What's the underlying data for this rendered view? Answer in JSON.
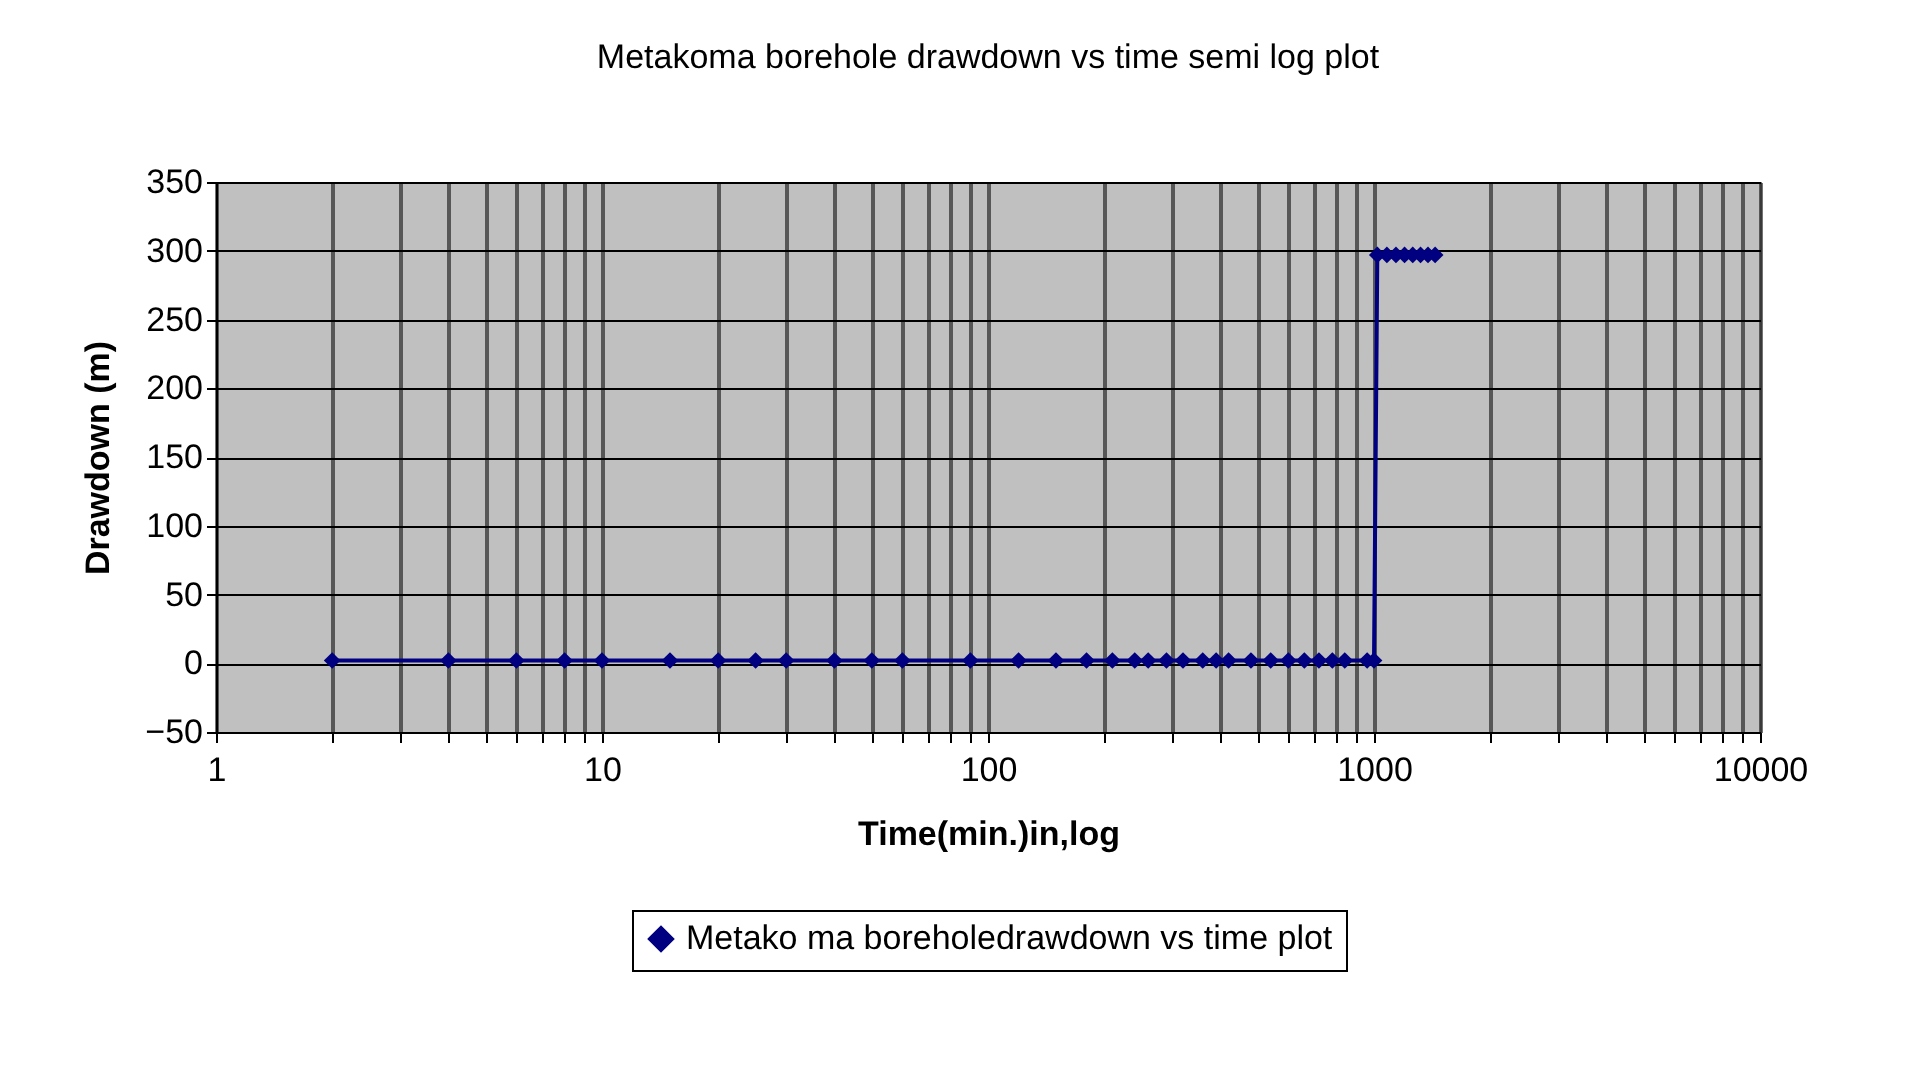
{
  "chart_data": {
    "type": "line",
    "title": "Metakoma borehole drawdown vs time semi log plot",
    "xlabel": "Time(min.)in,log",
    "ylabel": "Drawdown (m)",
    "x": [
      2,
      4,
      6,
      8,
      10,
      15,
      20,
      25,
      30,
      40,
      50,
      60,
      90,
      120,
      150,
      180,
      210,
      240,
      260,
      290,
      320,
      360,
      390,
      420,
      480,
      540,
      600,
      660,
      720,
      780,
      840,
      960,
      1000,
      1020,
      1080,
      1140,
      1200,
      1260,
      1320,
      1380,
      1440
    ],
    "series": [
      {
        "name": "Metako ma boreholedrawdown vs time plot",
        "color": "#000080",
        "values": [
          2,
          2,
          2,
          2,
          2,
          2,
          2,
          2,
          2,
          2,
          2,
          2,
          2,
          2,
          2,
          2,
          2,
          2,
          2,
          2,
          2,
          2,
          2,
          2,
          2,
          2,
          2,
          2,
          2,
          2,
          2,
          2,
          2,
          297,
          297,
          297,
          297,
          297,
          297,
          297,
          297
        ]
      }
    ],
    "xlim": [
      1,
      10000
    ],
    "xticks": [
      1,
      {
        "value": 2,
        "label": null
      },
      {
        "value": 3,
        "label": null
      },
      {
        "value": 4,
        "label": null
      },
      {
        "value": 5,
        "label": null
      },
      {
        "value": 6,
        "label": null
      },
      {
        "value": 7,
        "label": null
      },
      {
        "value": 8,
        "label": null
      },
      {
        "value": 9,
        "label": null
      },
      10,
      {
        "value": 20,
        "label": null
      },
      {
        "value": 30,
        "label": null
      },
      {
        "value": 40,
        "label": null
      },
      {
        "value": 50,
        "label": null
      },
      {
        "value": 60,
        "label": null
      },
      {
        "value": 70,
        "label": null
      },
      {
        "value": 80,
        "label": null
      },
      {
        "value": 90,
        "label": null
      },
      100,
      {
        "value": 200,
        "label": null
      },
      {
        "value": 300,
        "label": null
      },
      {
        "value": 400,
        "label": null
      },
      {
        "value": 500,
        "label": null
      },
      {
        "value": 600,
        "label": null
      },
      {
        "value": 700,
        "label": null
      },
      {
        "value": 800,
        "label": null
      },
      {
        "value": 900,
        "label": null
      },
      1000,
      {
        "value": 2000,
        "label": null
      },
      {
        "value": 3000,
        "label": null
      },
      {
        "value": 4000,
        "label": null
      },
      {
        "value": 5000,
        "label": null
      },
      {
        "value": 6000,
        "label": null
      },
      {
        "value": 7000,
        "label": null
      },
      {
        "value": 8000,
        "label": null
      },
      {
        "value": 9000,
        "label": null
      },
      10000
    ],
    "ylim": [
      -50,
      350
    ],
    "yticks": [
      -50,
      0,
      50,
      100,
      150,
      200,
      250,
      300,
      350
    ],
    "log": "x",
    "grid": true,
    "legend": "bottom",
    "marker": "diamond",
    "line_style": "solid"
  }
}
